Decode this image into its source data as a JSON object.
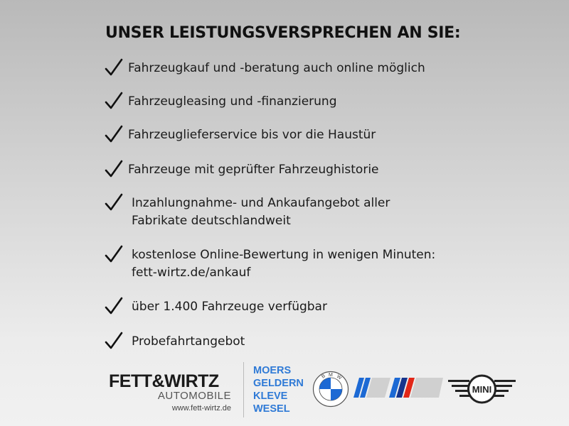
{
  "title": "UNSER LEISTUNGSVERSPRECHEN AN SIE:",
  "items": [
    {
      "lines": [
        "Fahrzeugkauf und -beratung auch online möglich"
      ]
    },
    {
      "lines": [
        "Fahrzeugleasing und -finanzierung"
      ]
    },
    {
      "lines": [
        "Fahrzeuglieferservice bis vor die Haustür"
      ]
    },
    {
      "lines": [
        "Fahrzeuge mit geprüfter Fahrzeughistorie"
      ]
    },
    {
      "lines": [
        "Inzahlungnahme- und Ankaufangebot aller",
        "Fabrikate deutschlandweit"
      ]
    },
    {
      "lines": [
        "kostenlose Online-Bewertung in wenigen Minuten:",
        "fett-wirtz.de/ankauf"
      ]
    },
    {
      "lines": [
        "über 1.400 Fahrzeuge verfügbar"
      ]
    },
    {
      "lines": [
        "Probefahrtangebot"
      ]
    }
  ],
  "icons": {
    "bullet": "checkmark-icon"
  },
  "footer": {
    "brand": "FETT&WIRTZ",
    "brand_sub": "AUTOMOBILE",
    "url": "www.fett-wirtz.de",
    "cities": [
      "MOERS",
      "GELDERN",
      "KLEVE",
      "WESEL"
    ],
    "logos": {
      "bmw": "BMW",
      "mini": "MINI"
    },
    "colors": {
      "city_blue": "#2f7ad6",
      "bmw_blue": "#1c69d4",
      "m_red": "#e22718",
      "m_darkblue": "#16348c"
    }
  }
}
